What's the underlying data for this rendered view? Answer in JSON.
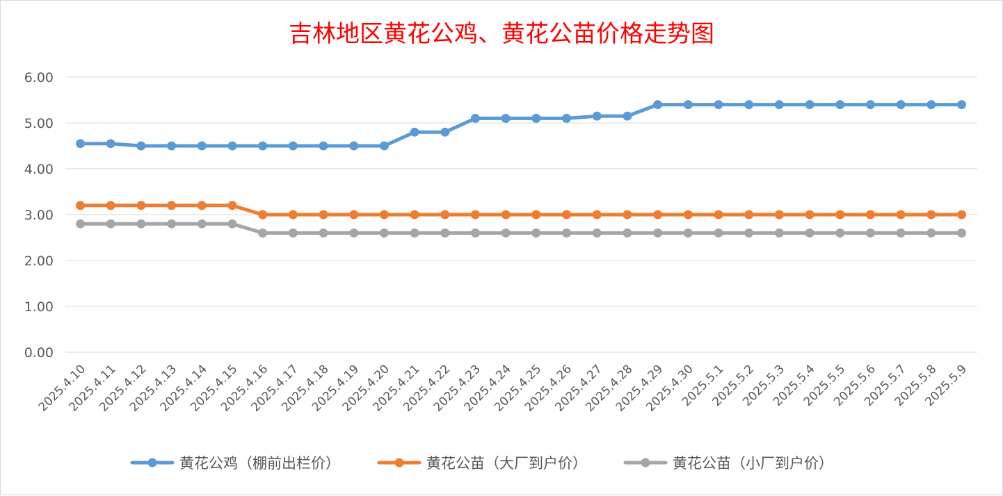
{
  "chart_data": {
    "type": "line",
    "title": "吉林地区黄花公鸡、黄花公苗价格走势图",
    "xlabel": "",
    "ylabel": "",
    "ylim": [
      0,
      6
    ],
    "yticks": [
      "0.00",
      "1.00",
      "2.00",
      "3.00",
      "4.00",
      "5.00",
      "6.00"
    ],
    "grid": true,
    "legend_position": "bottom",
    "categories": [
      "2025.4.10",
      "2025.4.11",
      "2025.4.12",
      "2025.4.13",
      "2025.4.14",
      "2025.4.15",
      "2025.4.16",
      "2025.4.17",
      "2025.4.18",
      "2025.4.19",
      "2025.4.20",
      "2025.4.21",
      "2025.4.22",
      "2025.4.23",
      "2025.4.24",
      "2025.4.25",
      "2025.4.26",
      "2025.4.27",
      "2025.4.28",
      "2025.4.29",
      "2025.4.30",
      "2025.5.1",
      "2025.5.2",
      "2025.5.3",
      "2025.5.4",
      "2025.5.5",
      "2025.5.6",
      "2025.5.7",
      "2025.5.8",
      "2025.5.9"
    ],
    "series": [
      {
        "name": "黄花公鸡（棚前出栏价）",
        "color": "#5b9bd5",
        "values": [
          4.55,
          4.55,
          4.5,
          4.5,
          4.5,
          4.5,
          4.5,
          4.5,
          4.5,
          4.5,
          4.5,
          4.8,
          4.8,
          5.1,
          5.1,
          5.1,
          5.1,
          5.15,
          5.15,
          5.4,
          5.4,
          5.4,
          5.4,
          5.4,
          5.4,
          5.4,
          5.4,
          5.4,
          5.4,
          5.4
        ]
      },
      {
        "name": "黄花公苗（大厂到户价）",
        "color": "#ed7d31",
        "values": [
          3.2,
          3.2,
          3.2,
          3.2,
          3.2,
          3.2,
          3.0,
          3.0,
          3.0,
          3.0,
          3.0,
          3.0,
          3.0,
          3.0,
          3.0,
          3.0,
          3.0,
          3.0,
          3.0,
          3.0,
          3.0,
          3.0,
          3.0,
          3.0,
          3.0,
          3.0,
          3.0,
          3.0,
          3.0,
          3.0
        ]
      },
      {
        "name": "黄花公苗（小厂到户价）",
        "color": "#a5a5a5",
        "values": [
          2.8,
          2.8,
          2.8,
          2.8,
          2.8,
          2.8,
          2.6,
          2.6,
          2.6,
          2.6,
          2.6,
          2.6,
          2.6,
          2.6,
          2.6,
          2.6,
          2.6,
          2.6,
          2.6,
          2.6,
          2.6,
          2.6,
          2.6,
          2.6,
          2.6,
          2.6,
          2.6,
          2.6,
          2.6,
          2.6
        ]
      }
    ]
  }
}
